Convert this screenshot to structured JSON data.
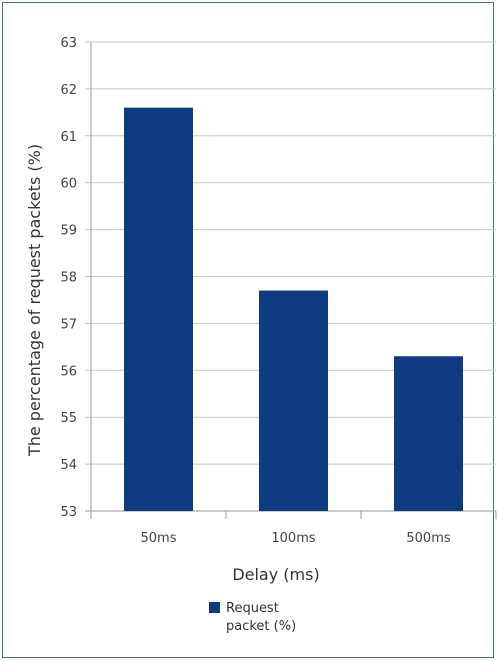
{
  "chart_data": {
    "type": "bar",
    "title": "",
    "xlabel": "Delay (ms)",
    "ylabel": "The percentage of request packets (%)",
    "categories": [
      "50ms",
      "100ms",
      "500ms"
    ],
    "series": [
      {
        "name": "Request packet (%)",
        "values": [
          61.6,
          57.7,
          56.3
        ],
        "color": "#0f3b80"
      }
    ],
    "ylim": [
      53,
      63
    ],
    "yticks": [
      53,
      54,
      55,
      56,
      57,
      58,
      59,
      60,
      61,
      62,
      63
    ],
    "grid": true,
    "legend": {
      "position": "bottom",
      "lines": [
        "Request",
        "packet (%)"
      ]
    }
  }
}
